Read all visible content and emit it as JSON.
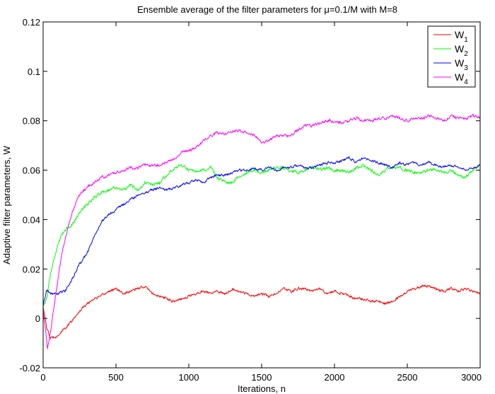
{
  "chart_data": {
    "type": "line",
    "title": "Ensemble average of the filter parameters for μ=0.1/M with M=8",
    "xlabel": "Iterations, n",
    "ylabel": "Adaptive filter parameters, W",
    "xlim": [
      0,
      3000
    ],
    "ylim": [
      -0.02,
      0.12
    ],
    "x_ticks": [
      "0",
      "500",
      "1000",
      "1500",
      "2000",
      "2500",
      "3000"
    ],
    "y_ticks": [
      "-0.02",
      "0",
      "0.02",
      "0.04",
      "0.06",
      "0.08",
      "0.1",
      "0.12"
    ],
    "grid": false,
    "legend_position": "top-right",
    "series": [
      {
        "name": "W",
        "subscript": "1",
        "color": "#ff0000",
        "x": [
          0,
          25,
          50,
          100,
          150,
          200,
          250,
          300,
          350,
          400,
          450,
          500,
          550,
          600,
          650,
          700,
          750,
          800,
          850,
          900,
          950,
          1000,
          1050,
          1100,
          1150,
          1200,
          1250,
          1300,
          1350,
          1400,
          1450,
          1500,
          1550,
          1600,
          1650,
          1700,
          1750,
          1800,
          1850,
          1900,
          1950,
          2000,
          2050,
          2100,
          2150,
          2200,
          2250,
          2300,
          2350,
          2400,
          2450,
          2500,
          2550,
          2600,
          2650,
          2700,
          2750,
          2800,
          2850,
          2900,
          2950,
          3000
        ],
        "y": [
          0.005,
          -0.004,
          -0.008,
          -0.007,
          -0.004,
          -0.001,
          0.003,
          0.006,
          0.008,
          0.009,
          0.011,
          0.012,
          0.01,
          0.011,
          0.012,
          0.013,
          0.01,
          0.009,
          0.008,
          0.007,
          0.008,
          0.009,
          0.01,
          0.011,
          0.01,
          0.011,
          0.01,
          0.012,
          0.011,
          0.01,
          0.009,
          0.01,
          0.009,
          0.01,
          0.012,
          0.011,
          0.012,
          0.012,
          0.011,
          0.012,
          0.01,
          0.011,
          0.01,
          0.009,
          0.008,
          0.008,
          0.007,
          0.007,
          0.006,
          0.007,
          0.009,
          0.011,
          0.012,
          0.013,
          0.013,
          0.012,
          0.011,
          0.012,
          0.011,
          0.012,
          0.011,
          0.01
        ]
      },
      {
        "name": "W",
        "subscript": "2",
        "color": "#00ff00",
        "x": [
          0,
          25,
          50,
          100,
          150,
          200,
          250,
          300,
          350,
          400,
          450,
          500,
          550,
          600,
          650,
          700,
          750,
          800,
          850,
          900,
          950,
          1000,
          1050,
          1100,
          1150,
          1200,
          1250,
          1300,
          1350,
          1400,
          1450,
          1500,
          1550,
          1600,
          1650,
          1700,
          1750,
          1800,
          1850,
          1900,
          1950,
          2000,
          2050,
          2100,
          2150,
          2200,
          2250,
          2300,
          2350,
          2400,
          2450,
          2500,
          2550,
          2600,
          2650,
          2700,
          2750,
          2800,
          2850,
          2900,
          2950,
          3000
        ],
        "y": [
          0.005,
          0.008,
          0.018,
          0.03,
          0.036,
          0.038,
          0.043,
          0.046,
          0.049,
          0.051,
          0.052,
          0.053,
          0.052,
          0.054,
          0.052,
          0.055,
          0.054,
          0.055,
          0.058,
          0.061,
          0.062,
          0.06,
          0.059,
          0.06,
          0.061,
          0.057,
          0.055,
          0.055,
          0.058,
          0.059,
          0.06,
          0.059,
          0.06,
          0.061,
          0.061,
          0.06,
          0.059,
          0.06,
          0.061,
          0.06,
          0.061,
          0.06,
          0.06,
          0.059,
          0.061,
          0.062,
          0.06,
          0.058,
          0.06,
          0.061,
          0.061,
          0.06,
          0.059,
          0.059,
          0.06,
          0.06,
          0.059,
          0.06,
          0.058,
          0.057,
          0.06,
          0.062
        ]
      },
      {
        "name": "W",
        "subscript": "3",
        "color": "#0000ff",
        "x": [
          0,
          25,
          50,
          100,
          150,
          200,
          250,
          300,
          350,
          400,
          450,
          500,
          550,
          600,
          650,
          700,
          750,
          800,
          850,
          900,
          950,
          1000,
          1050,
          1100,
          1150,
          1200,
          1250,
          1300,
          1350,
          1400,
          1450,
          1500,
          1550,
          1600,
          1650,
          1700,
          1750,
          1800,
          1850,
          1900,
          1950,
          2000,
          2050,
          2100,
          2150,
          2200,
          2250,
          2300,
          2350,
          2400,
          2450,
          2500,
          2550,
          2600,
          2650,
          2700,
          2750,
          2800,
          2850,
          2900,
          2950,
          3000
        ],
        "y": [
          0.005,
          0.012,
          0.01,
          0.01,
          0.011,
          0.016,
          0.022,
          0.026,
          0.033,
          0.039,
          0.042,
          0.044,
          0.046,
          0.048,
          0.05,
          0.051,
          0.052,
          0.053,
          0.052,
          0.053,
          0.054,
          0.055,
          0.056,
          0.055,
          0.057,
          0.058,
          0.058,
          0.059,
          0.06,
          0.06,
          0.061,
          0.06,
          0.061,
          0.06,
          0.061,
          0.061,
          0.062,
          0.061,
          0.061,
          0.062,
          0.063,
          0.063,
          0.064,
          0.065,
          0.063,
          0.065,
          0.064,
          0.063,
          0.062,
          0.061,
          0.063,
          0.062,
          0.063,
          0.062,
          0.063,
          0.062,
          0.061,
          0.062,
          0.061,
          0.06,
          0.061,
          0.062
        ]
      },
      {
        "name": "W",
        "subscript": "4",
        "color": "#ff00ff",
        "x": [
          0,
          15,
          30,
          50,
          75,
          100,
          125,
          150,
          200,
          250,
          300,
          350,
          400,
          450,
          500,
          550,
          600,
          650,
          700,
          750,
          800,
          850,
          900,
          950,
          1000,
          1050,
          1100,
          1150,
          1200,
          1250,
          1300,
          1350,
          1400,
          1450,
          1500,
          1550,
          1600,
          1650,
          1700,
          1750,
          1800,
          1850,
          1900,
          1950,
          2000,
          2050,
          2100,
          2150,
          2200,
          2250,
          2300,
          2350,
          2400,
          2450,
          2500,
          2550,
          2600,
          2650,
          2700,
          2750,
          2800,
          2850,
          2900,
          2950,
          3000
        ],
        "y": [
          0.003,
          -0.004,
          -0.012,
          -0.006,
          0.005,
          0.015,
          0.025,
          0.032,
          0.043,
          0.05,
          0.053,
          0.055,
          0.057,
          0.058,
          0.059,
          0.06,
          0.061,
          0.061,
          0.062,
          0.062,
          0.062,
          0.063,
          0.065,
          0.067,
          0.068,
          0.069,
          0.072,
          0.074,
          0.075,
          0.075,
          0.076,
          0.076,
          0.075,
          0.074,
          0.071,
          0.072,
          0.074,
          0.074,
          0.074,
          0.076,
          0.078,
          0.078,
          0.079,
          0.08,
          0.08,
          0.079,
          0.08,
          0.081,
          0.08,
          0.08,
          0.081,
          0.081,
          0.082,
          0.081,
          0.08,
          0.081,
          0.081,
          0.082,
          0.081,
          0.08,
          0.082,
          0.081,
          0.081,
          0.082,
          0.081
        ]
      }
    ]
  }
}
